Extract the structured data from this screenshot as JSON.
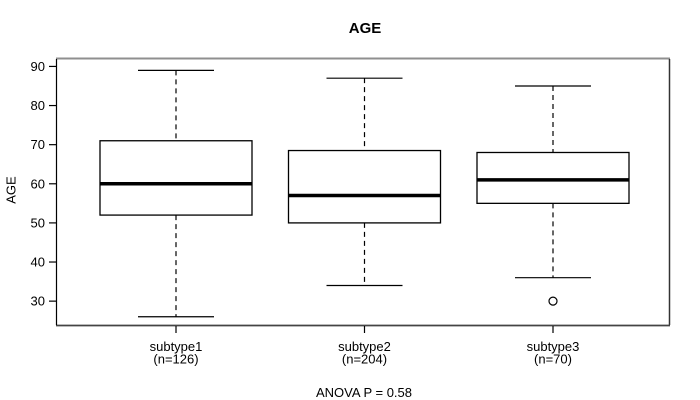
{
  "figure": {
    "title": "AGE",
    "y_axis_label": "AGE",
    "footnote": "ANOVA P = 0.58"
  },
  "chart_data": {
    "type": "boxplot",
    "title": "AGE",
    "xlabel": "",
    "ylabel": "AGE",
    "ylim": [
      23.9,
      91.9
    ],
    "yticks": [
      30,
      40,
      50,
      60,
      70,
      80,
      90
    ],
    "grid": false,
    "legend": null,
    "footnote": "ANOVA P = 0.58",
    "categories": [
      "subtype1",
      "subtype2",
      "subtype3"
    ],
    "groups": [
      {
        "label": "subtype1",
        "sublabel": "(n=126)",
        "n": 126,
        "whisker_low": 26,
        "q1": 52,
        "median": 60,
        "q3": 71,
        "whisker_high": 89,
        "outliers": []
      },
      {
        "label": "subtype2",
        "sublabel": "(n=204)",
        "n": 204,
        "whisker_low": 34,
        "q1": 50,
        "median": 57,
        "q3": 68.5,
        "whisker_high": 87,
        "outliers": []
      },
      {
        "label": "subtype3",
        "sublabel": "(n=70)",
        "n": 70,
        "whisker_low": 36,
        "q1": 55,
        "median": 61,
        "q3": 68,
        "whisker_high": 85,
        "outliers": [
          30
        ]
      }
    ],
    "colors": {
      "line": "#000000",
      "box_fill": "#ffffff",
      "background": "#ffffff",
      "frame_top": "#8f8f8f",
      "frame_side": "#333333"
    }
  }
}
